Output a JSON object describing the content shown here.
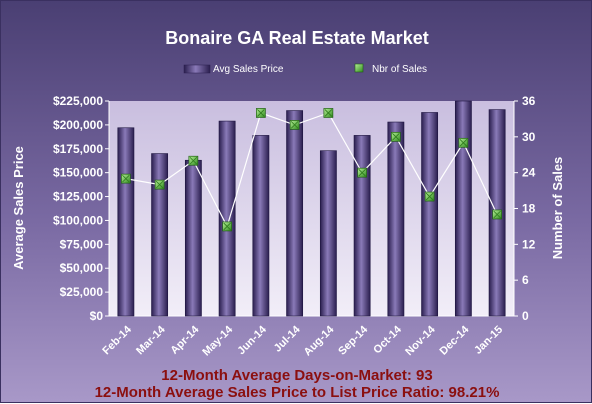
{
  "chart_data": {
    "type": "bar",
    "title": "Bonaire GA Real Estate Market",
    "categories": [
      "Feb-14",
      "Mar-14",
      "Apr-14",
      "May-14",
      "Jun-14",
      "Jul-14",
      "Aug-14",
      "Sep-14",
      "Oct-14",
      "Nov-14",
      "Dec-14",
      "Jan-15"
    ],
    "series": [
      {
        "name": "Avg Sales Price",
        "type": "bar",
        "axis": "left",
        "values": [
          197000,
          170000,
          163000,
          204000,
          189000,
          215000,
          173000,
          189000,
          203000,
          213000,
          226000,
          216000
        ]
      },
      {
        "name": "Nbr of Sales",
        "type": "line",
        "axis": "right",
        "values": [
          23,
          22,
          26,
          15,
          34,
          32,
          34,
          24,
          30,
          20,
          29,
          17
        ]
      }
    ],
    "ylabel": "Average Sales Price",
    "y2label": "Number of Sales",
    "ylim": [
      0,
      225000
    ],
    "y2lim": [
      0,
      36
    ],
    "yticks": [
      "$0",
      "$25,000",
      "$50,000",
      "$75,000",
      "$100,000",
      "$125,000",
      "$150,000",
      "$175,000",
      "$200,000",
      "$225,000"
    ],
    "y2ticks": [
      "0",
      "6",
      "12",
      "18",
      "24",
      "30",
      "36"
    ],
    "legend_position": "top",
    "grid": false,
    "colors": {
      "bar": "#3a2a66",
      "bar_highlight": "#8a7ab8",
      "marker": "#6fd04a",
      "line": "#ffffff",
      "plot_bg": "#d9cfe8"
    }
  },
  "footer": {
    "line1": "12-Month Average Days-on-Market: 93",
    "line2": "12-Month Average  Sales Price to List Price Ratio: 98.21%"
  }
}
